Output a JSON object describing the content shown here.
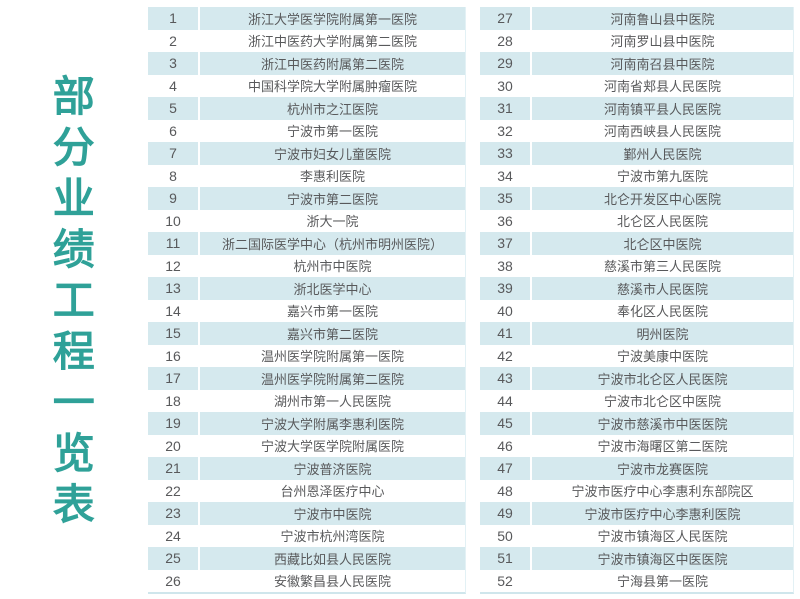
{
  "title": {
    "text": "部分业绩工程一览表"
  },
  "colors": {
    "accent_teal": "#2FA198",
    "row_band": "#D5E9EE",
    "row_text": "#58595B",
    "table_edge": "#CFE6EC",
    "background": "#FFFFFF"
  },
  "left_table": {
    "rows": [
      {
        "no": "1",
        "name": "浙江大学医学院附属第一医院"
      },
      {
        "no": "2",
        "name": "浙江中医药大学附属第二医院"
      },
      {
        "no": "3",
        "name": "浙江中医药附属第二医院"
      },
      {
        "no": "4",
        "name": "中国科学院大学附属肿瘤医院"
      },
      {
        "no": "5",
        "name": "杭州市之江医院"
      },
      {
        "no": "6",
        "name": "宁波市第一医院"
      },
      {
        "no": "7",
        "name": "宁波市妇女儿童医院"
      },
      {
        "no": "8",
        "name": "李惠利医院"
      },
      {
        "no": "9",
        "name": "宁波市第二医院"
      },
      {
        "no": "10",
        "name": "浙大一院"
      },
      {
        "no": "11",
        "name": "浙二国际医学中心（杭州市明州医院）"
      },
      {
        "no": "12",
        "name": "杭州市中医院"
      },
      {
        "no": "13",
        "name": "浙北医学中心"
      },
      {
        "no": "14",
        "name": "嘉兴市第一医院"
      },
      {
        "no": "15",
        "name": "嘉兴市第二医院"
      },
      {
        "no": "16",
        "name": "温州医学院附属第一医院"
      },
      {
        "no": "17",
        "name": "温州医学院附属第二医院"
      },
      {
        "no": "18",
        "name": "湖州市第一人民医院"
      },
      {
        "no": "19",
        "name": "宁波大学附属李惠利医院"
      },
      {
        "no": "20",
        "name": "宁波大学医学院附属医院"
      },
      {
        "no": "21",
        "name": "宁波普济医院"
      },
      {
        "no": "22",
        "name": "台州恩泽医疗中心"
      },
      {
        "no": "23",
        "name": "宁波市中医院"
      },
      {
        "no": "24",
        "name": "宁波市杭州湾医院"
      },
      {
        "no": "25",
        "name": "西藏比如县人民医院"
      },
      {
        "no": "26",
        "name": "安徽繁昌县人民医院"
      }
    ]
  },
  "right_table": {
    "rows": [
      {
        "no": "27",
        "name": "河南鲁山县中医院"
      },
      {
        "no": "28",
        "name": "河南罗山县中医院"
      },
      {
        "no": "29",
        "name": "河南南召县中医院"
      },
      {
        "no": "30",
        "name": "河南省郏县人民医院"
      },
      {
        "no": "31",
        "name": "河南镇平县人民医院"
      },
      {
        "no": "32",
        "name": "河南西峡县人民医院"
      },
      {
        "no": "33",
        "name": "鄞州人民医院"
      },
      {
        "no": "34",
        "name": "宁波市第九医院"
      },
      {
        "no": "35",
        "name": "北仑开发区中心医院"
      },
      {
        "no": "36",
        "name": "北仑区人民医院"
      },
      {
        "no": "37",
        "name": "北仑区中医院"
      },
      {
        "no": "38",
        "name": "慈溪市第三人民医院"
      },
      {
        "no": "39",
        "name": "慈溪市人民医院"
      },
      {
        "no": "40",
        "name": "奉化区人民医院"
      },
      {
        "no": "41",
        "name": "明州医院"
      },
      {
        "no": "42",
        "name": "宁波美康中医院"
      },
      {
        "no": "43",
        "name": "宁波市北仑区人民医院"
      },
      {
        "no": "44",
        "name": "宁波市北仑区中医院"
      },
      {
        "no": "45",
        "name": "宁波市慈溪市中医医院"
      },
      {
        "no": "46",
        "name": "宁波市海曙区第二医院"
      },
      {
        "no": "47",
        "name": "宁波市龙赛医院"
      },
      {
        "no": "48",
        "name": "宁波市医疗中心李惠利东部院区"
      },
      {
        "no": "49",
        "name": "宁波市医疗中心李惠利医院"
      },
      {
        "no": "50",
        "name": "宁波市镇海区人民医院"
      },
      {
        "no": "51",
        "name": "宁波市镇海区中医医院"
      },
      {
        "no": "52",
        "name": "宁海县第一医院"
      }
    ]
  }
}
